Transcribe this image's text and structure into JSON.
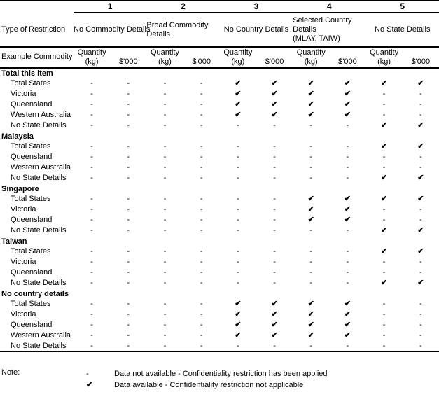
{
  "table": {
    "corner_labels": {
      "restriction": "Type of Restriction",
      "commodity": "Example Commodity"
    },
    "groups": [
      {
        "number": "1",
        "label": "No Commodity Details"
      },
      {
        "number": "2",
        "label": "Broad Commodity Details"
      },
      {
        "number": "3",
        "label": "No Country Details"
      },
      {
        "number": "4",
        "label": "Selected Country Details\n(MLAY, TAIW)"
      },
      {
        "number": "5",
        "label": "No State Details"
      }
    ],
    "subheaders": {
      "quantity": "Quantity\n(kg)",
      "value": "$'000"
    },
    "symbols": {
      "available": "✔",
      "not_available": "-"
    },
    "sections": [
      {
        "title": "Total this item",
        "rows": [
          {
            "label": "Total States",
            "cells": [
              "-",
              "-",
              "-",
              "-",
              "✔",
              "✔",
              "✔",
              "✔",
              "✔",
              "✔"
            ]
          },
          {
            "label": "Victoria",
            "cells": [
              "-",
              "-",
              "-",
              "-",
              "✔",
              "✔",
              "✔",
              "✔",
              "-",
              "-"
            ]
          },
          {
            "label": "Queensland",
            "cells": [
              "-",
              "-",
              "-",
              "-",
              "✔",
              "✔",
              "✔",
              "✔",
              "-",
              "-"
            ]
          },
          {
            "label": "Western Australia",
            "cells": [
              "-",
              "-",
              "-",
              "-",
              "✔",
              "✔",
              "✔",
              "✔",
              "-",
              "-"
            ]
          },
          {
            "label": "No State Details",
            "cells": [
              "-",
              "-",
              "-",
              "-",
              "-",
              "-",
              "-",
              "-",
              "✔",
              "✔"
            ]
          }
        ]
      },
      {
        "title": "Malaysia",
        "rows": [
          {
            "label": "Total States",
            "cells": [
              "-",
              "-",
              "-",
              "-",
              "-",
              "-",
              "-",
              "-",
              "✔",
              "✔"
            ]
          },
          {
            "label": "Queensland",
            "cells": [
              "-",
              "-",
              "-",
              "-",
              "-",
              "-",
              "-",
              "-",
              "-",
              "-"
            ]
          },
          {
            "label": "Western Australia",
            "cells": [
              "-",
              "-",
              "-",
              "-",
              "-",
              "-",
              "-",
              "-",
              "-",
              "-"
            ]
          },
          {
            "label": "No State Details",
            "cells": [
              "-",
              "-",
              "-",
              "-",
              "-",
              "-",
              "-",
              "-",
              "✔",
              "✔"
            ]
          }
        ]
      },
      {
        "title": "Singapore",
        "rows": [
          {
            "label": "Total States",
            "cells": [
              "-",
              "-",
              "-",
              "-",
              "-",
              "-",
              "✔",
              "✔",
              "✔",
              "✔"
            ]
          },
          {
            "label": "Victoria",
            "cells": [
              "-",
              "-",
              "-",
              "-",
              "-",
              "-",
              "✔",
              "✔",
              "-",
              "-"
            ]
          },
          {
            "label": "Queensland",
            "cells": [
              "-",
              "-",
              "-",
              "-",
              "-",
              "-",
              "✔",
              "✔",
              "-",
              "-"
            ]
          },
          {
            "label": "No State Details",
            "cells": [
              "-",
              "-",
              "-",
              "-",
              "-",
              "-",
              "-",
              "-",
              "✔",
              "✔"
            ]
          }
        ]
      },
      {
        "title": "Taiwan",
        "rows": [
          {
            "label": "Total States",
            "cells": [
              "-",
              "-",
              "-",
              "-",
              "-",
              "-",
              "-",
              "-",
              "✔",
              "✔"
            ]
          },
          {
            "label": "Victoria",
            "cells": [
              "-",
              "-",
              "-",
              "-",
              "-",
              "-",
              "-",
              "-",
              "-",
              "-"
            ]
          },
          {
            "label": "Queensland",
            "cells": [
              "-",
              "-",
              "-",
              "-",
              "-",
              "-",
              "-",
              "-",
              "-",
              "-"
            ]
          },
          {
            "label": "No State Details",
            "cells": [
              "-",
              "-",
              "-",
              "-",
              "-",
              "-",
              "-",
              "-",
              "✔",
              "✔"
            ]
          }
        ]
      },
      {
        "title": "No country details",
        "rows": [
          {
            "label": "Total States",
            "cells": [
              "-",
              "-",
              "-",
              "-",
              "✔",
              "✔",
              "✔",
              "✔",
              "-",
              "-"
            ]
          },
          {
            "label": "Victoria",
            "cells": [
              "-",
              "-",
              "-",
              "-",
              "✔",
              "✔",
              "✔",
              "✔",
              "-",
              "-"
            ]
          },
          {
            "label": "Queensland",
            "cells": [
              "-",
              "-",
              "-",
              "-",
              "✔",
              "✔",
              "✔",
              "✔",
              "-",
              "-"
            ]
          },
          {
            "label": "Western Australia",
            "cells": [
              "-",
              "-",
              "-",
              "-",
              "✔",
              "✔",
              "✔",
              "✔",
              "-",
              "-"
            ]
          },
          {
            "label": "No State Details",
            "cells": [
              "-",
              "-",
              "-",
              "-",
              "-",
              "-",
              "-",
              "-",
              "-",
              "-"
            ]
          }
        ]
      }
    ]
  },
  "note": {
    "label": "Note:",
    "items": [
      {
        "symbol": "-",
        "text": "Data not available - Confidentiality restriction has been applied"
      },
      {
        "symbol": "✔",
        "text": "Data available - Confidentiality restriction not applicable"
      }
    ]
  }
}
